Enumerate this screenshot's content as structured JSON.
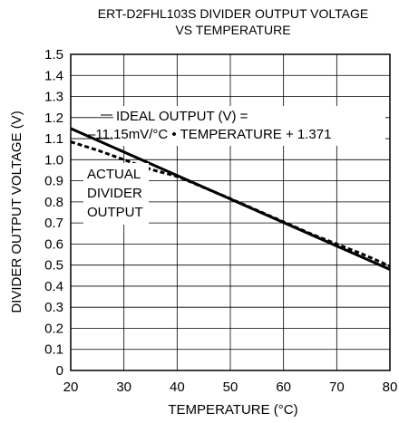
{
  "chart_data": {
    "type": "line",
    "title_lines": [
      "ERT-D2FHL103S DIVIDER OUTPUT VOLTAGE",
      "VS TEMPERATURE"
    ],
    "xlabel": "TEMPERATURE (°C)",
    "ylabel": "DIVIDER OUTPUT VOLTAGE (V)",
    "xlim": [
      20,
      80
    ],
    "ylim": [
      0,
      1.5
    ],
    "xticks": [
      "20",
      "30",
      "40",
      "50",
      "60",
      "70",
      "80"
    ],
    "yticks": [
      "0",
      "0.1",
      "0.2",
      "0.3",
      "0.4",
      "0.5",
      "0.6",
      "0.7",
      "0.8",
      "0.9",
      "1.0",
      "1.1",
      "1.2",
      "1.3",
      "1.4",
      "1.5"
    ],
    "grid": true,
    "series": [
      {
        "name": "IDEAL OUTPUT",
        "style": "solid",
        "color": "#000000",
        "x": [
          20,
          80
        ],
        "y": [
          1.148,
          0.479
        ]
      },
      {
        "name": "ACTUAL DIVIDER OUTPUT",
        "style": "dashed",
        "color": "#000000",
        "x": [
          20,
          25,
          30,
          35,
          40,
          45,
          50,
          55,
          60,
          65,
          70,
          75,
          80
        ],
        "y": [
          1.085,
          1.045,
          1.0,
          0.955,
          0.92,
          0.868,
          0.815,
          0.76,
          0.705,
          0.65,
          0.6,
          0.55,
          0.495
        ]
      }
    ],
    "annotations": [
      {
        "lines": [
          "IDEAL OUTPUT (V) =",
          "–11.15mV/°C • TEMPERATURE + 1.371"
        ]
      },
      {
        "lines": [
          "ACTUAL",
          "DIVIDER",
          "OUTPUT"
        ]
      }
    ]
  }
}
